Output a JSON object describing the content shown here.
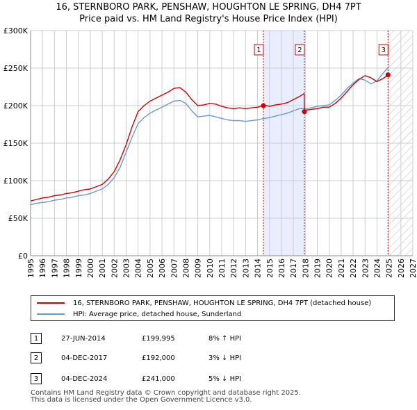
{
  "title_line1": "16, STERNBORO PARK, PENSHAW, HOUGHTON LE SPRING, DH4 7PT",
  "title_line2": "Price paid vs. HM Land Registry's House Price Index (HPI)",
  "colors": {
    "property": "#cc0000",
    "hpi": "#6699cc",
    "shade": "#e8eeff",
    "grid": "#cccccc"
  },
  "chart_data": {
    "type": "line",
    "xlim": [
      1995,
      2027
    ],
    "ylim": [
      0,
      300000
    ],
    "y_ticks": [
      0,
      50000,
      100000,
      150000,
      200000,
      250000,
      300000
    ],
    "y_tick_labels": [
      "£0",
      "£50K",
      "£100K",
      "£150K",
      "£200K",
      "£250K",
      "£300K"
    ],
    "x_ticks": [
      1995,
      1996,
      1997,
      1998,
      1999,
      2000,
      2001,
      2002,
      2003,
      2004,
      2005,
      2006,
      2007,
      2008,
      2009,
      2010,
      2011,
      2012,
      2013,
      2014,
      2015,
      2016,
      2017,
      2018,
      2019,
      2020,
      2021,
      2022,
      2023,
      2024,
      2025,
      2026,
      2027
    ],
    "x_tick_labels": [
      "1995",
      "1996",
      "1997",
      "1998",
      "1999",
      "2000",
      "2001",
      "2002",
      "2003",
      "2004",
      "2005",
      "2006",
      "2007",
      "2008",
      "2009",
      "2010",
      "2011",
      "2012",
      "2013",
      "2014",
      "2015",
      "2016",
      "2017",
      "2018",
      "2019",
      "2020",
      "2021",
      "2022",
      "2023",
      "2024",
      "2025",
      "2026",
      "2027"
    ],
    "shaded_range": [
      2014.49,
      2017.92
    ],
    "forecast_from": 2025.0,
    "series": [
      {
        "name": "16, STERNBORO PARK, PENSHAW, HOUGHTON LE SPRING, DH4 7PT (detached house)",
        "x": [
          1995,
          1995.5,
          1996,
          1996.5,
          1997,
          1997.5,
          1998,
          1998.5,
          1999,
          1999.5,
          2000,
          2000.5,
          2001,
          2001.5,
          2002,
          2002.5,
          2003,
          2003.5,
          2004,
          2004.5,
          2005,
          2005.5,
          2006,
          2006.5,
          2007,
          2007.5,
          2008,
          2008.5,
          2009,
          2009.5,
          2010,
          2010.5,
          2011,
          2011.5,
          2012,
          2012.5,
          2013,
          2013.5,
          2014,
          2014.49,
          2014.8,
          2015,
          2015.5,
          2016,
          2016.5,
          2017,
          2017.5,
          2017.9,
          2017.93,
          2018,
          2018.5,
          2019,
          2019.5,
          2020,
          2020.5,
          2021,
          2021.5,
          2022,
          2022.5,
          2023,
          2023.5,
          2024,
          2024.5,
          2024.92,
          2025.0
        ],
        "values": [
          73000,
          75000,
          77000,
          78000,
          80000,
          81000,
          83000,
          84000,
          86000,
          88000,
          89000,
          92000,
          95000,
          102000,
          112000,
          128000,
          148000,
          172000,
          192000,
          200000,
          206000,
          210000,
          214000,
          218000,
          223000,
          224000,
          218000,
          208000,
          200000,
          201000,
          203000,
          202000,
          199000,
          197000,
          196000,
          197000,
          196000,
          197000,
          198000,
          199995,
          200000,
          199000,
          201000,
          202000,
          204000,
          208000,
          212000,
          216000,
          192000,
          194000,
          195000,
          196000,
          198000,
          198000,
          203000,
          210000,
          219000,
          228000,
          235000,
          240000,
          237000,
          232000,
          236000,
          241000,
          243000
        ]
      },
      {
        "name": "HPI: Average price, detached house, Sunderland",
        "x": [
          1995,
          1995.5,
          1996,
          1996.5,
          1997,
          1997.5,
          1998,
          1998.5,
          1999,
          1999.5,
          2000,
          2000.5,
          2001,
          2001.5,
          2002,
          2002.5,
          2003,
          2003.5,
          2004,
          2004.5,
          2005,
          2005.5,
          2006,
          2006.5,
          2007,
          2007.5,
          2008,
          2008.5,
          2009,
          2009.5,
          2010,
          2010.5,
          2011,
          2011.5,
          2012,
          2012.5,
          2013,
          2013.5,
          2014,
          2014.5,
          2015,
          2015.5,
          2016,
          2016.5,
          2017,
          2017.5,
          2018,
          2018.5,
          2019,
          2019.5,
          2020,
          2020.5,
          2021,
          2021.5,
          2022,
          2022.5,
          2023,
          2023.5,
          2024,
          2024.5,
          2025.0
        ],
        "values": [
          68000,
          70000,
          71000,
          72000,
          74000,
          75000,
          77000,
          78000,
          80000,
          81000,
          83000,
          86000,
          89000,
          95000,
          104000,
          118000,
          138000,
          158000,
          176000,
          184000,
          190000,
          194000,
          198000,
          202000,
          206000,
          207000,
          203000,
          193000,
          185000,
          186000,
          187000,
          185000,
          183000,
          181000,
          180000,
          180000,
          179000,
          180000,
          181000,
          183000,
          184000,
          186000,
          188000,
          190000,
          193000,
          196000,
          196000,
          197000,
          199000,
          200000,
          201000,
          207000,
          214000,
          223000,
          230000,
          236000,
          234000,
          229000,
          233000,
          243000,
          252000
        ]
      }
    ],
    "sales": [
      {
        "label": "1",
        "x": 2014.49,
        "y": 199995
      },
      {
        "label": "2",
        "x": 2017.92,
        "y": 192000
      },
      {
        "label": "3",
        "x": 2024.92,
        "y": 241000
      }
    ]
  },
  "legend": {
    "property": "16, STERNBORO PARK, PENSHAW, HOUGHTON LE SPRING, DH4 7PT (detached house)",
    "hpi": "HPI: Average price, detached house, Sunderland"
  },
  "transactions": [
    {
      "num": "1",
      "date": "27-JUN-2014",
      "price": "£199,995",
      "hpi": "8% ↑ HPI"
    },
    {
      "num": "2",
      "date": "04-DEC-2017",
      "price": "£192,000",
      "hpi": "3% ↓ HPI"
    },
    {
      "num": "3",
      "date": "04-DEC-2024",
      "price": "£241,000",
      "hpi": "5% ↓ HPI"
    }
  ],
  "footer": {
    "line1": "Contains HM Land Registry data © Crown copyright and database right 2025.",
    "line2": "This data is licensed under the Open Government Licence v3.0."
  }
}
